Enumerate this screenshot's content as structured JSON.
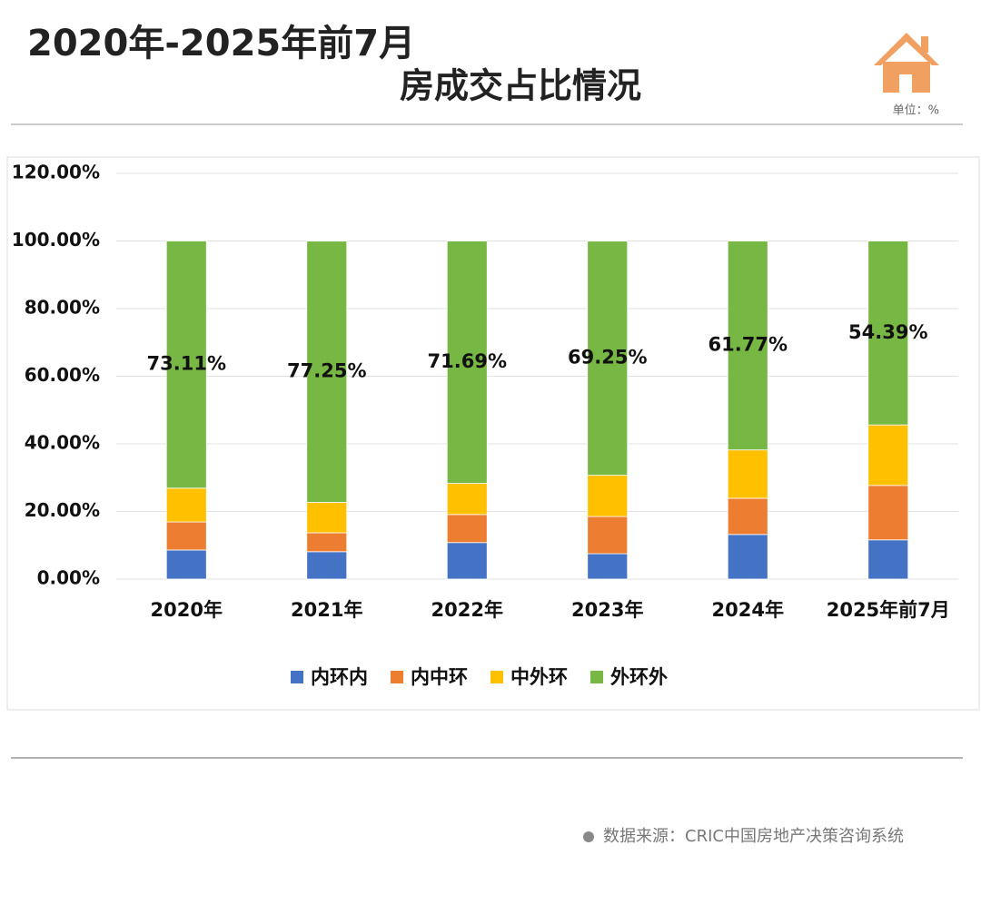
{
  "chart_data": {
    "type": "stacked_bar",
    "title": "2020年-2025年前7月",
    "subtitle": "房成交占比情况",
    "unit_note": "单位：%",
    "source": "数据来源：CRIC中国房地产决策咨询系统",
    "categories": [
      "2020年",
      "2021年",
      "2022年",
      "2023年",
      "2024年",
      "2025年前7月"
    ],
    "series": [
      {
        "name": "内环内",
        "color": "#4472c4",
        "values": [
          8.6,
          8.1,
          10.8,
          7.5,
          13.2,
          11.6
        ]
      },
      {
        "name": "内中环",
        "color": "#ed7d31",
        "values": [
          8.3,
          5.6,
          8.3,
          11.0,
          10.7,
          16.1
        ]
      },
      {
        "name": "中外环",
        "color": "#ffc000",
        "values": [
          10.0,
          9.0,
          9.2,
          12.2,
          14.3,
          17.9
        ]
      },
      {
        "name": "外环外",
        "color": "#77b743",
        "values": [
          73.11,
          77.25,
          71.69,
          69.25,
          61.77,
          54.39
        ],
        "value_labels": [
          "73.11%",
          "77.25%",
          "71.69%",
          "69.25%",
          "61.77%",
          "54.39%"
        ]
      }
    ],
    "ylim": [
      0,
      120
    ],
    "yticks": [
      {
        "value": 0,
        "label": "0.00%"
      },
      {
        "value": 20,
        "label": "20.00%"
      },
      {
        "value": 40,
        "label": "40.00%"
      },
      {
        "value": 60,
        "label": "60.00%"
      },
      {
        "value": 80,
        "label": "80.00%"
      },
      {
        "value": 100,
        "label": "100.00%"
      },
      {
        "value": 120,
        "label": "120.00%"
      }
    ],
    "grid": true,
    "legend": "bottom"
  }
}
